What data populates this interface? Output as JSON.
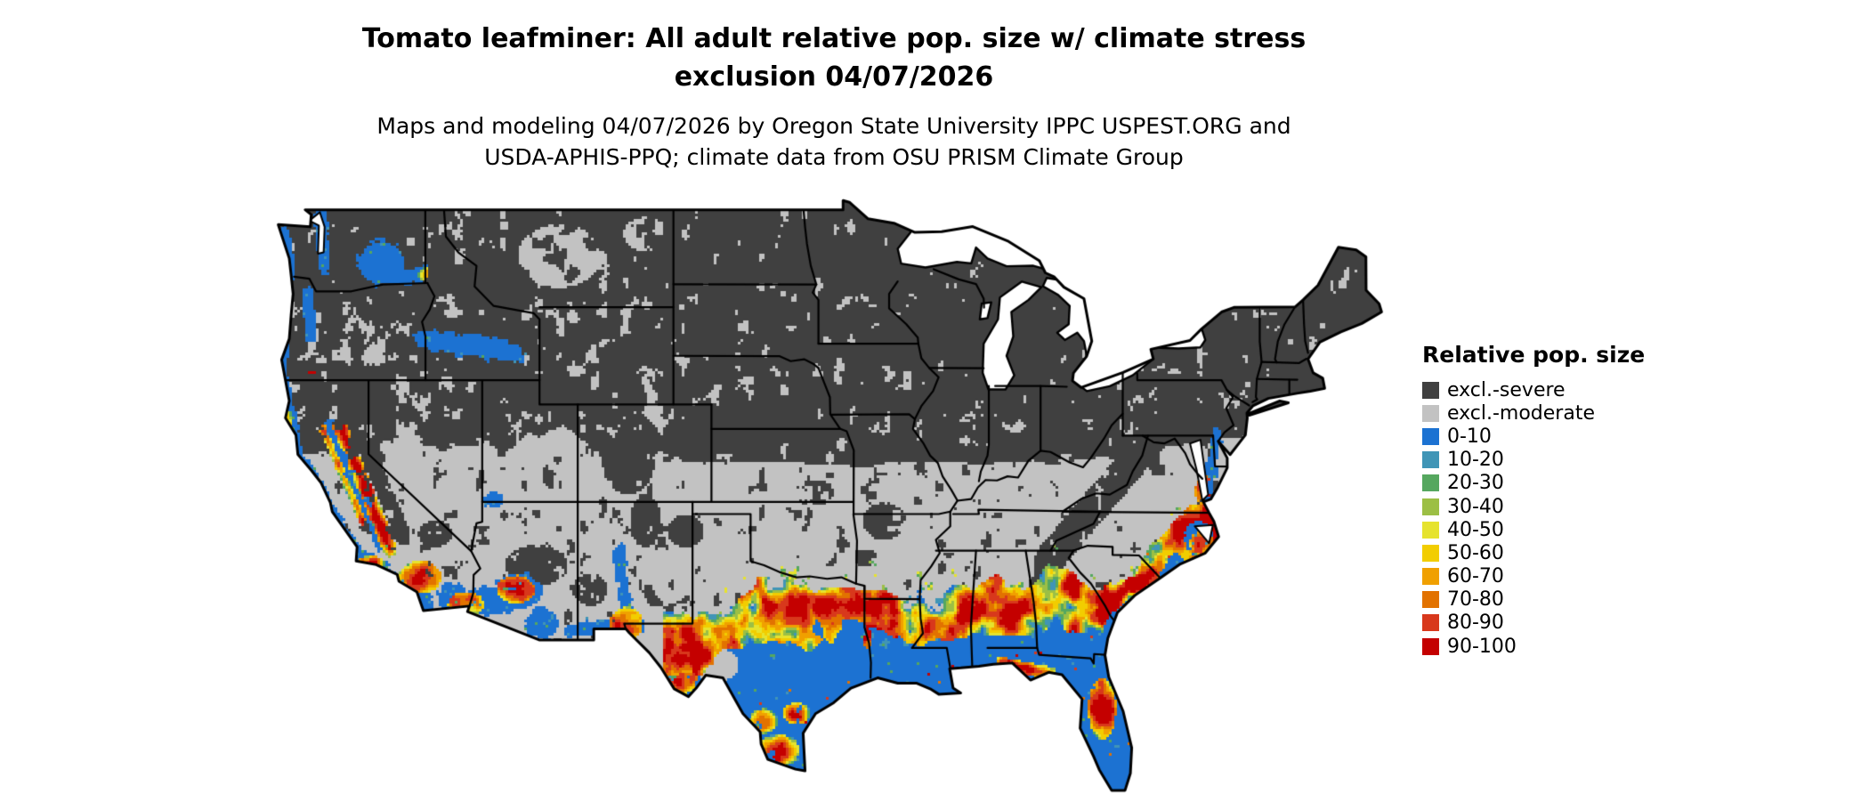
{
  "title": {
    "line1": "Tomato leafminer: All adult relative pop. size w/ climate stress",
    "line2": "exclusion 04/07/2026"
  },
  "subtitle": {
    "line1": "Maps and modeling 04/07/2026 by Oregon State University IPPC USPEST.ORG and",
    "line2": "USDA-APHIS-PPQ; climate data from OSU PRISM Climate Group"
  },
  "map": {
    "region": "Continental United States",
    "kind": "raster choropleth of relative population size with climate stress exclusion"
  },
  "legend": {
    "title": "Relative pop. size",
    "items": [
      {
        "label": "excl.-severe",
        "color": "#404040"
      },
      {
        "label": "excl.-moderate",
        "color": "#c2c2c2"
      },
      {
        "label": "0-10",
        "color": "#1c72d2"
      },
      {
        "label": "10-20",
        "color": "#4095b6"
      },
      {
        "label": "20-30",
        "color": "#55a75f"
      },
      {
        "label": "30-40",
        "color": "#9cbf45"
      },
      {
        "label": "40-50",
        "color": "#e6e32e"
      },
      {
        "label": "50-60",
        "color": "#f2cd00"
      },
      {
        "label": "60-70",
        "color": "#f0a000"
      },
      {
        "label": "70-80",
        "color": "#e27200"
      },
      {
        "label": "80-90",
        "color": "#d8381c"
      },
      {
        "label": "90-100",
        "color": "#c40000"
      }
    ]
  }
}
